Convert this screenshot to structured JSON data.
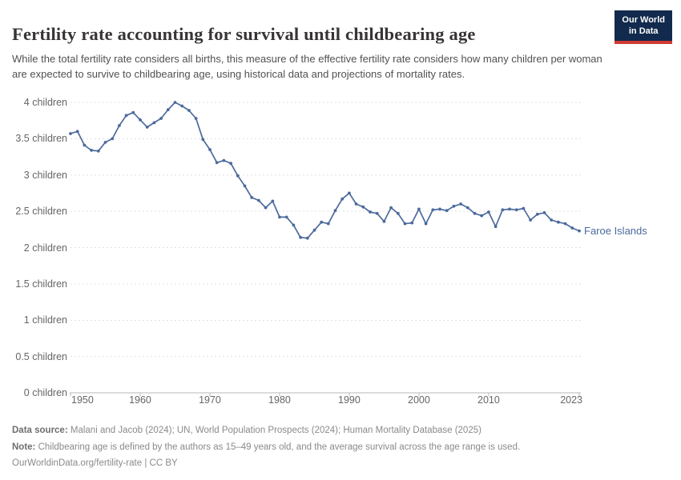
{
  "header": {
    "title": "Fertility rate accounting for survival until childbearing age",
    "subtitle": "While the total fertility rate considers all births, this measure of the effective fertility rate considers how many children per woman are expected to survive to childbearing age, using historical data and projections of mortality rates.",
    "logo": {
      "line1": "Our World",
      "line2": "in Data",
      "bg_color": "#122a4d",
      "accent_color": "#cf3b32"
    }
  },
  "chart_data": {
    "type": "line",
    "title": "Fertility rate accounting for survival until childbearing age",
    "xlabel": "",
    "ylabel": "",
    "xlim": [
      1950,
      2023
    ],
    "ylim": [
      0,
      4
    ],
    "x_ticks": [
      1950,
      1960,
      1970,
      1980,
      1990,
      2000,
      2010,
      2023
    ],
    "y_ticks": [
      0,
      0.5,
      1,
      1.5,
      2,
      2.5,
      3,
      3.5,
      4
    ],
    "y_tick_labels": [
      "0 children",
      "0.5 children",
      "1 children",
      "1.5 children",
      "2 children",
      "2.5 children",
      "3 children",
      "3.5 children",
      "4 children"
    ],
    "grid": "horizontal-dashed",
    "legend_position": "line-end",
    "series": [
      {
        "name": "Faroe Islands",
        "color": "#4C6A9C",
        "x": [
          1950,
          1951,
          1952,
          1953,
          1954,
          1955,
          1956,
          1957,
          1958,
          1959,
          1960,
          1961,
          1962,
          1963,
          1964,
          1965,
          1966,
          1967,
          1968,
          1969,
          1970,
          1971,
          1972,
          1973,
          1974,
          1975,
          1976,
          1977,
          1978,
          1979,
          1980,
          1981,
          1982,
          1983,
          1984,
          1985,
          1986,
          1987,
          1988,
          1989,
          1990,
          1991,
          1992,
          1993,
          1994,
          1995,
          1996,
          1997,
          1998,
          1999,
          2000,
          2001,
          2002,
          2003,
          2004,
          2005,
          2006,
          2007,
          2008,
          2009,
          2010,
          2011,
          2012,
          2013,
          2014,
          2015,
          2016,
          2017,
          2018,
          2019,
          2020,
          2021,
          2022,
          2023
        ],
        "values": [
          3.57,
          3.6,
          3.41,
          3.34,
          3.33,
          3.45,
          3.5,
          3.68,
          3.82,
          3.86,
          3.76,
          3.66,
          3.72,
          3.78,
          3.9,
          4.0,
          3.95,
          3.89,
          3.78,
          3.49,
          3.35,
          3.17,
          3.2,
          3.16,
          2.99,
          2.85,
          2.69,
          2.65,
          2.55,
          2.64,
          2.42,
          2.42,
          2.31,
          2.14,
          2.13,
          2.24,
          2.35,
          2.33,
          2.51,
          2.67,
          2.75,
          2.6,
          2.56,
          2.49,
          2.47,
          2.36,
          2.55,
          2.47,
          2.33,
          2.34,
          2.53,
          2.33,
          2.52,
          2.53,
          2.51,
          2.57,
          2.6,
          2.55,
          2.47,
          2.44,
          2.49,
          2.29,
          2.52,
          2.53,
          2.52,
          2.54,
          2.38,
          2.46,
          2.48,
          2.38,
          2.35,
          2.33,
          2.27,
          2.23
        ]
      }
    ]
  },
  "footer": {
    "data_source_label": "Data source:",
    "data_source": "Malani and Jacob (2024); UN, World Population Prospects (2024); Human Mortality Database (2025)",
    "note_label": "Note:",
    "note": "Childbearing age is defined by the authors as 15–49 years old, and the average survival across the age range is used.",
    "url": "OurWorldinData.org/fertility-rate",
    "separator": "|",
    "license": "CC BY"
  }
}
